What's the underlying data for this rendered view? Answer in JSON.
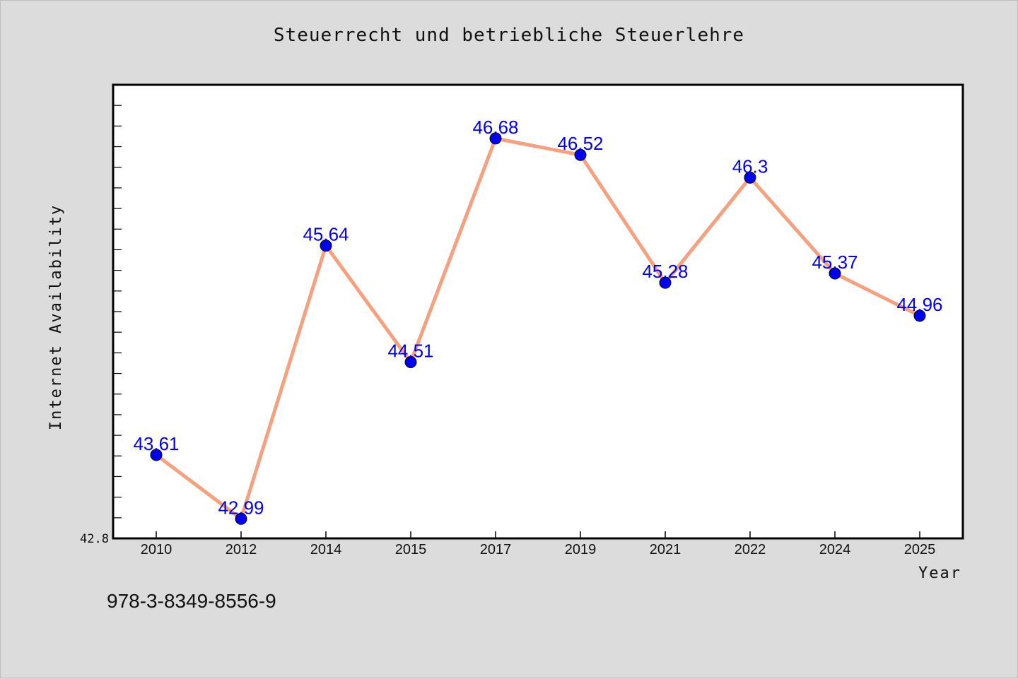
{
  "chart_data": {
    "type": "line",
    "title": "Steuerrecht und betriebliche Steuerlehre",
    "xlabel": "Year",
    "ylabel": "Internet Availability",
    "categories": [
      "2010",
      "2012",
      "2014",
      "2015",
      "2017",
      "2019",
      "2021",
      "2022",
      "2024",
      "2025"
    ],
    "series": [
      {
        "values": [
          43.61,
          42.99,
          45.64,
          44.51,
          46.68,
          46.52,
          45.28,
          46.3,
          45.37,
          44.96
        ],
        "data_labels": [
          "43.61",
          "42.99",
          "45.64",
          "44.51",
          "46.68",
          "46.52",
          "45.28",
          "46.3",
          "45.37",
          "44.96"
        ],
        "line_color": "#f5a07e",
        "marker_color": "#0000ee",
        "label_color": "#0000ee"
      }
    ],
    "y_tick_label": "42.8",
    "ylim": [
      42.8,
      47.2
    ],
    "grid": false,
    "legend": "none",
    "minor_ticks_y": true
  },
  "footer_text": "978-3-8349-8556-9",
  "colors": {
    "background": "#dcdcdc",
    "plot_background": "#ffffff",
    "axis": "#000000"
  }
}
